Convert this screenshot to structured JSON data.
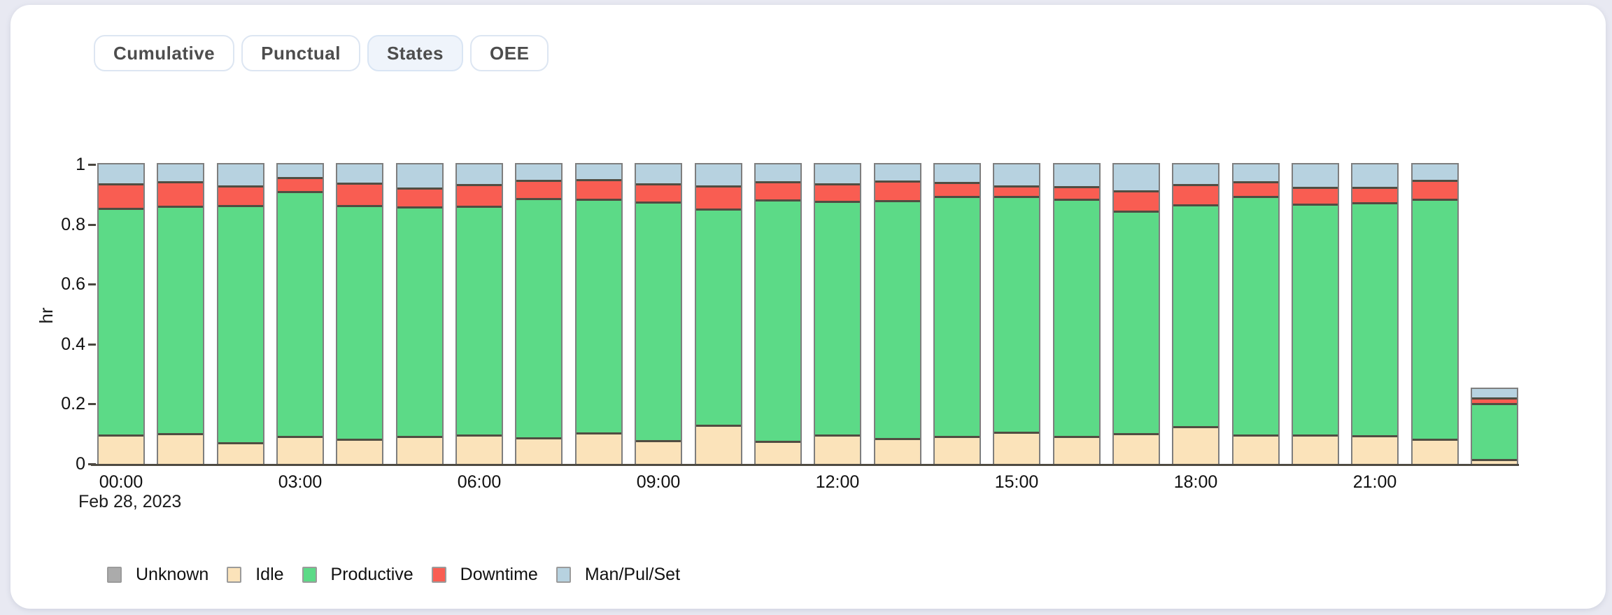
{
  "page": {
    "background_color": "#e8e9f2",
    "card_color": "#ffffff"
  },
  "tabs": {
    "items": [
      {
        "label": "Cumulative",
        "active": false
      },
      {
        "label": "Punctual",
        "active": false
      },
      {
        "label": "States",
        "active": true
      },
      {
        "label": "OEE",
        "active": false
      }
    ],
    "active_bg": "#eff4fb"
  },
  "chart_data": {
    "type": "bar",
    "stacked": true,
    "title": "",
    "ylabel": "hr",
    "ylim": [
      0,
      1
    ],
    "grid": false,
    "legend_position": "bottom",
    "x_annotation": "Feb 28, 2023",
    "categories": [
      "00:00",
      "01:00",
      "02:00",
      "03:00",
      "04:00",
      "05:00",
      "06:00",
      "07:00",
      "08:00",
      "09:00",
      "10:00",
      "11:00",
      "12:00",
      "13:00",
      "14:00",
      "15:00",
      "16:00",
      "17:00",
      "18:00",
      "19:00",
      "20:00",
      "21:00",
      "22:00",
      "23:00"
    ],
    "xticks": [
      {
        "index": 0,
        "label": "00:00"
      },
      {
        "index": 3,
        "label": "03:00"
      },
      {
        "index": 6,
        "label": "06:00"
      },
      {
        "index": 9,
        "label": "09:00"
      },
      {
        "index": 12,
        "label": "12:00"
      },
      {
        "index": 15,
        "label": "15:00"
      },
      {
        "index": 18,
        "label": "18:00"
      },
      {
        "index": 21,
        "label": "21:00"
      }
    ],
    "yticks": [
      {
        "value": 0,
        "label": "0"
      },
      {
        "value": 0.2,
        "label": "0.2"
      },
      {
        "value": 0.4,
        "label": "0.4"
      },
      {
        "value": 0.6,
        "label": "0.6"
      },
      {
        "value": 0.8,
        "label": "0.8"
      },
      {
        "value": 1,
        "label": "1"
      }
    ],
    "series": [
      {
        "name": "Unknown",
        "color": "#ababab",
        "values": [
          0,
          0,
          0,
          0,
          0,
          0,
          0,
          0,
          0,
          0,
          0,
          0,
          0,
          0,
          0,
          0,
          0,
          0,
          0,
          0,
          0,
          0,
          0,
          0
        ]
      },
      {
        "name": "Idle",
        "color": "#fbe3ba",
        "values": [
          0.097,
          0.102,
          0.073,
          0.093,
          0.083,
          0.093,
          0.099,
          0.089,
          0.106,
          0.079,
          0.13,
          0.076,
          0.099,
          0.086,
          0.093,
          0.108,
          0.093,
          0.102,
          0.125,
          0.099,
          0.097,
          0.095,
          0.083,
          0.016
        ]
      },
      {
        "name": "Productive",
        "color": "#5cda87",
        "values": [
          0.758,
          0.76,
          0.792,
          0.819,
          0.782,
          0.767,
          0.763,
          0.8,
          0.779,
          0.798,
          0.723,
          0.807,
          0.78,
          0.795,
          0.803,
          0.788,
          0.792,
          0.744,
          0.741,
          0.796,
          0.771,
          0.779,
          0.802,
          0.187
        ]
      },
      {
        "name": "Downtime",
        "color": "#f95d52",
        "values": [
          0.083,
          0.083,
          0.066,
          0.046,
          0.074,
          0.062,
          0.073,
          0.059,
          0.066,
          0.061,
          0.078,
          0.06,
          0.059,
          0.066,
          0.045,
          0.035,
          0.043,
          0.068,
          0.068,
          0.05,
          0.058,
          0.052,
          0.064,
          0.02
        ]
      },
      {
        "name": "Man/Pul/Set",
        "color": "#b7d2e0",
        "values": [
          0.062,
          0.055,
          0.069,
          0.042,
          0.061,
          0.078,
          0.065,
          0.052,
          0.049,
          0.062,
          0.069,
          0.057,
          0.062,
          0.053,
          0.059,
          0.069,
          0.072,
          0.086,
          0.066,
          0.055,
          0.074,
          0.074,
          0.051,
          0.027
        ]
      }
    ],
    "bar_outline_color": "#7e7e7e",
    "segment_border_color": "#514d42",
    "axis_color": "#4e4a42"
  }
}
